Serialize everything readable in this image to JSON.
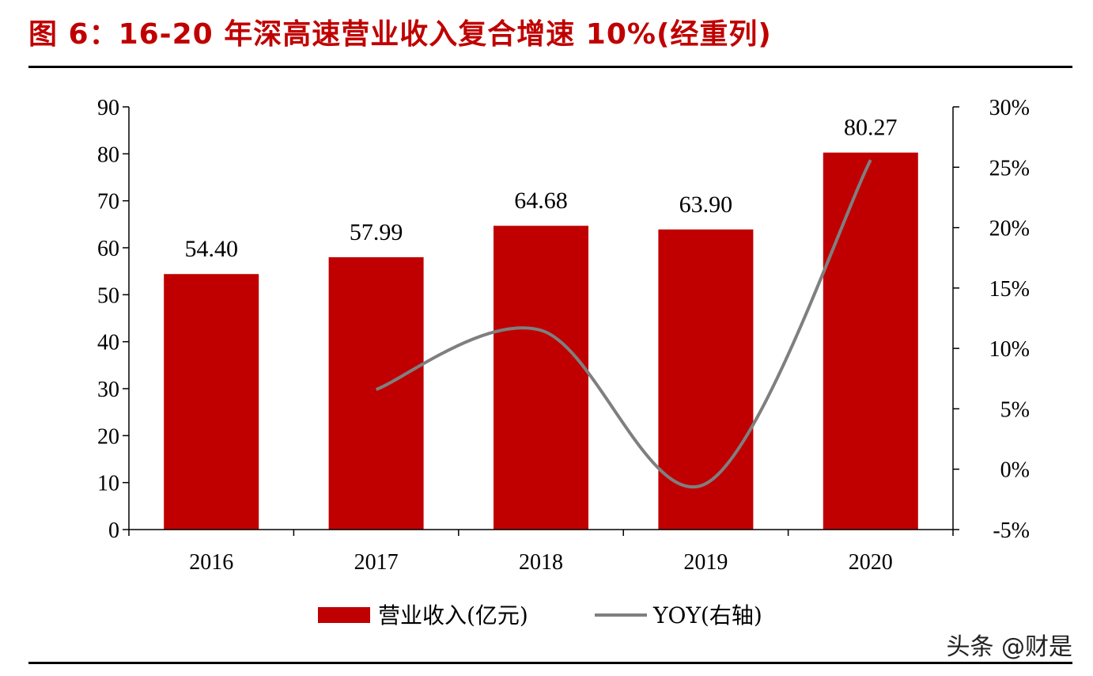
{
  "title": "图 6：16-20 年深高速营业收入复合增速 10%(经重列)",
  "watermark": "头条 @财是",
  "colors": {
    "bar": "#c00000",
    "line": "#7f7f7f",
    "title": "#c00000"
  },
  "chart_data": {
    "type": "bar+line",
    "categories": [
      "2016",
      "2017",
      "2018",
      "2019",
      "2020"
    ],
    "series": [
      {
        "name": "营业收入(亿元)",
        "type": "bar",
        "axis": "left",
        "values": [
          54.4,
          57.99,
          64.68,
          63.9,
          80.27
        ],
        "labels": [
          "54.40",
          "57.99",
          "64.68",
          "63.90",
          "80.27"
        ]
      },
      {
        "name": "YOY(右轴)",
        "type": "line",
        "axis": "right",
        "smooth": true,
        "values": [
          null,
          6.6,
          11.5,
          -1.2,
          25.6
        ]
      }
    ],
    "left_axis": {
      "range": [
        0,
        90
      ],
      "ticks": [
        "0",
        "10",
        "20",
        "30",
        "40",
        "50",
        "60",
        "70",
        "80",
        "90"
      ]
    },
    "right_axis": {
      "range": [
        -5,
        30
      ],
      "unit": "%",
      "ticks": [
        "-5%",
        "0%",
        "5%",
        "10%",
        "15%",
        "20%",
        "25%",
        "30%"
      ]
    },
    "legend_position": "bottom",
    "grid": false
  }
}
